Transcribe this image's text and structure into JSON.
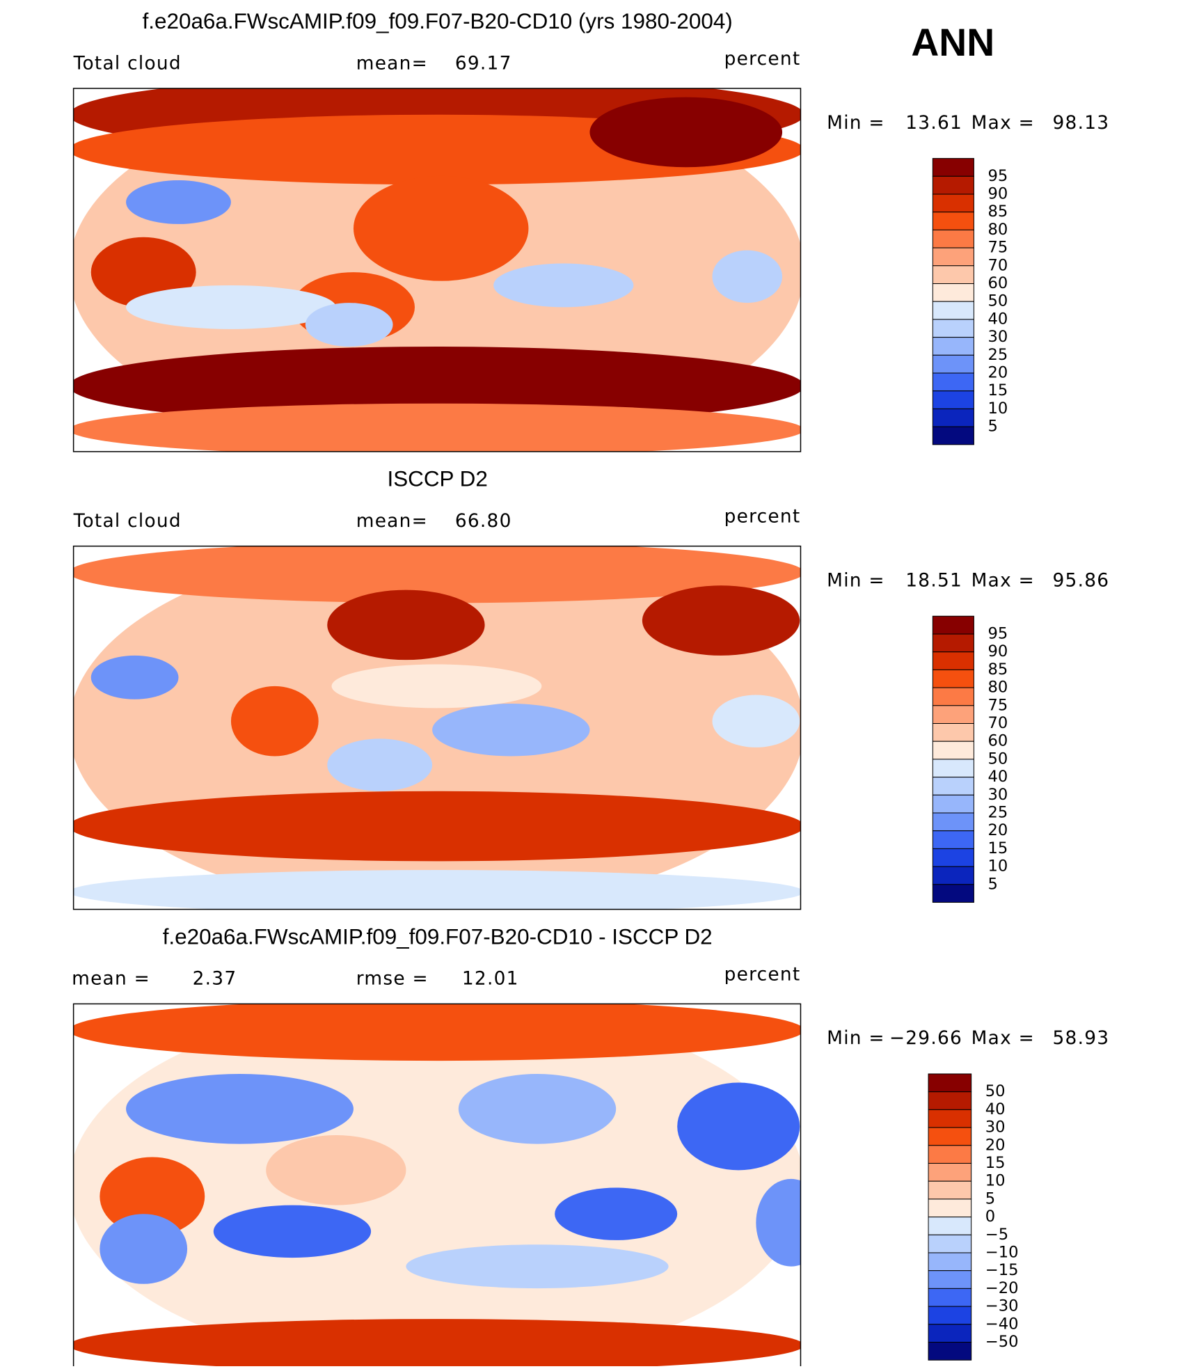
{
  "header": {
    "season": "ANN"
  },
  "panels": [
    {
      "title": "f.e20a6a.FWscAMIP.f09_f09.F07-B20-CD10 (yrs 1980-2004)",
      "variable": "Total cloud",
      "stat1_label": "mean=",
      "stat1_value": "69.17",
      "units": "percent",
      "min_label": "Min =",
      "min": "13.61",
      "max_label": "Max =",
      "max": "98.13",
      "colorbar": {
        "labels": [
          "95",
          "90",
          "85",
          "80",
          "75",
          "70",
          "60",
          "50",
          "40",
          "30",
          "25",
          "20",
          "15",
          "10",
          "5"
        ],
        "colors": [
          "#870000",
          "#b51a00",
          "#d93000",
          "#f5500f",
          "#fc7a45",
          "#fda27a",
          "#fdc8ab",
          "#feeadb",
          "#d8e8fc",
          "#b9d1fc",
          "#97b6fb",
          "#6d93f9",
          "#3d67f4",
          "#1c43e3",
          "#0b25bd",
          "#03097f"
        ]
      }
    },
    {
      "title": "ISCCP D2",
      "variable": "Total cloud",
      "stat1_label": "mean=",
      "stat1_value": "66.80",
      "units": "percent",
      "min_label": "Min =",
      "min": "18.51",
      "max_label": "Max =",
      "max": "95.86",
      "colorbar": {
        "labels": [
          "95",
          "90",
          "85",
          "80",
          "75",
          "70",
          "60",
          "50",
          "40",
          "30",
          "25",
          "20",
          "15",
          "10",
          "5"
        ],
        "colors": [
          "#870000",
          "#b51a00",
          "#d93000",
          "#f5500f",
          "#fc7a45",
          "#fda27a",
          "#fdc8ab",
          "#feeadb",
          "#d8e8fc",
          "#b9d1fc",
          "#97b6fb",
          "#6d93f9",
          "#3d67f4",
          "#1c43e3",
          "#0b25bd",
          "#03097f"
        ]
      }
    },
    {
      "title": "f.e20a6a.FWscAMIP.f09_f09.F07-B20-CD10 - ISCCP D2",
      "stat1_label": "mean =",
      "stat1_value": "2.37",
      "stat2_label": "rmse =",
      "stat2_value": "12.01",
      "units": "percent",
      "min_label": "Min =",
      "min": "−29.66",
      "max_label": "Max =",
      "max": "58.93",
      "colorbar": {
        "labels": [
          "50",
          "40",
          "30",
          "20",
          "15",
          "10",
          "5",
          "0",
          "−5",
          "−10",
          "−15",
          "−20",
          "−30",
          "−40",
          "−50"
        ],
        "colors": [
          "#870000",
          "#b51a00",
          "#d93000",
          "#f5500f",
          "#fc7a45",
          "#fda27a",
          "#fdc8ab",
          "#feeadb",
          "#d8e8fc",
          "#b9d1fc",
          "#97b6fb",
          "#6d93f9",
          "#3d67f4",
          "#1c43e3",
          "#0b25bd",
          "#03097f"
        ]
      }
    }
  ]
}
